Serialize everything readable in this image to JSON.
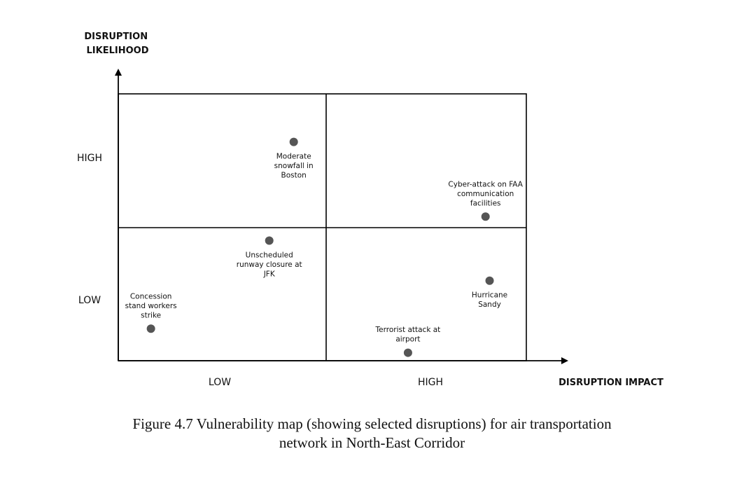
{
  "y_axis": {
    "title_lines": [
      "DISRUPTION",
      "LIKELIHOOD"
    ],
    "ticks": [
      "HIGH",
      "LOW"
    ]
  },
  "x_axis": {
    "title": "DISRUPTION IMPACT",
    "ticks": [
      "LOW",
      "HIGH"
    ]
  },
  "points": [
    {
      "id": "moderate-snowfall-boston",
      "label_lines": [
        "Moderate",
        "snowfall in",
        "Boston"
      ],
      "impact": 0.43,
      "likelihood": 0.82,
      "label_position": "below"
    },
    {
      "id": "cyber-attack-faa",
      "label_lines": [
        "Cyber-attack on FAA",
        "communication",
        "facilities"
      ],
      "impact": 0.9,
      "likelihood": 0.54,
      "label_position": "above"
    },
    {
      "id": "unscheduled-runway-closure-jfk",
      "label_lines": [
        "Unscheduled",
        "runway closure at",
        "JFK"
      ],
      "impact": 0.37,
      "likelihood": 0.45,
      "label_position": "below"
    },
    {
      "id": "concession-workers-strike",
      "label_lines": [
        "Concession",
        "stand workers",
        "strike"
      ],
      "impact": 0.08,
      "likelihood": 0.12,
      "label_position": "above"
    },
    {
      "id": "hurricane-sandy",
      "label_lines": [
        "Hurricane",
        "Sandy"
      ],
      "impact": 0.91,
      "likelihood": 0.3,
      "label_position": "below"
    },
    {
      "id": "terrorist-attack-airport",
      "label_lines": [
        "Terrorist attack at",
        "airport"
      ],
      "impact": 0.71,
      "likelihood": 0.03,
      "label_position": "above"
    }
  ],
  "caption": {
    "line1": "Figure 4.7 Vulnerability map (showing selected disruptions) for air transportation",
    "line2": "network in North-East Corridor"
  },
  "colors": {
    "point": "#555555",
    "lines": "#000000"
  }
}
